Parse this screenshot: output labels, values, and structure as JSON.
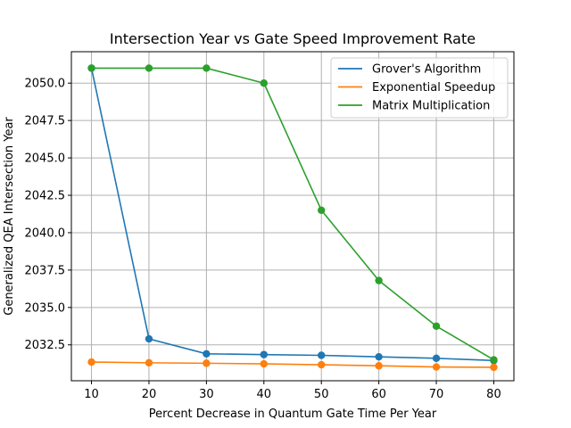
{
  "chart_data": {
    "type": "line",
    "title": "Intersection Year vs Gate Speed Improvement Rate",
    "xlabel": "Percent Decrease in Quantum Gate Time Per Year",
    "ylabel": "Generalized QEA Intersection Year",
    "x": [
      10,
      20,
      30,
      40,
      50,
      60,
      70,
      80
    ],
    "xticks": [
      "10",
      "20",
      "30",
      "40",
      "50",
      "60",
      "70",
      "80"
    ],
    "yticks": [
      "2032.5",
      "2035.0",
      "2037.5",
      "2040.0",
      "2042.5",
      "2045.0",
      "2047.5",
      "2050.0"
    ],
    "xlim": [
      6.5,
      83.5
    ],
    "ylim": [
      2030.1,
      2052.1
    ],
    "grid": true,
    "legend_position": "top-right",
    "series": [
      {
        "name": "Grover's Algorithm",
        "color": "#1f77b4",
        "values": [
          2051.0,
          2032.9,
          2031.9,
          2031.85,
          2031.8,
          2031.7,
          2031.6,
          2031.45
        ]
      },
      {
        "name": "Exponential Speedup",
        "color": "#ff7f0e",
        "values": [
          2031.35,
          2031.3,
          2031.27,
          2031.23,
          2031.17,
          2031.1,
          2031.02,
          2031.0
        ]
      },
      {
        "name": "Matrix Multiplication",
        "color": "#2ca02c",
        "values": [
          2051.0,
          2051.0,
          2051.0,
          2050.0,
          2041.5,
          2036.8,
          2033.75,
          2031.5
        ]
      }
    ]
  }
}
